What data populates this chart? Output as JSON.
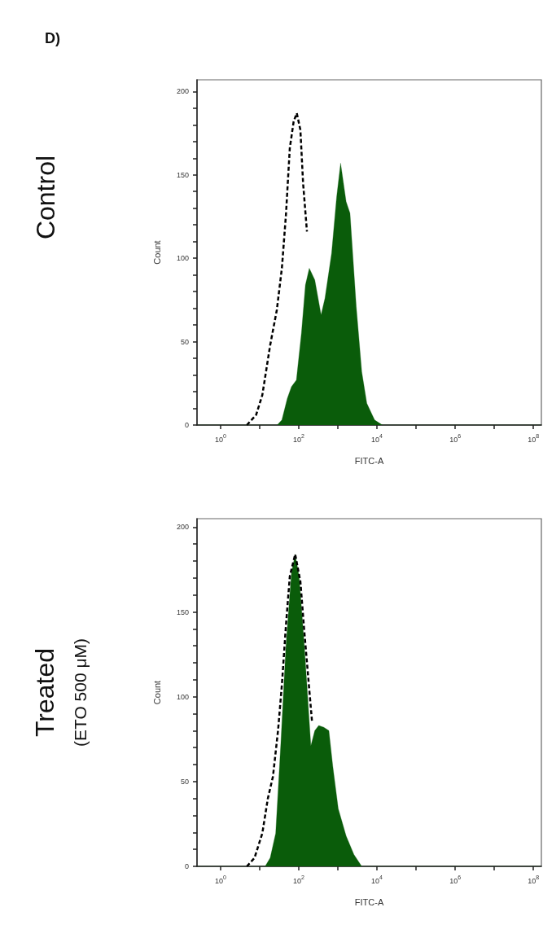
{
  "chart_data": [
    {
      "type": "area",
      "title": "Control",
      "annotations": [
        "D)"
      ],
      "xlabel": "FITC-A",
      "ylabel": "Count",
      "log": "x",
      "grid": false,
      "marker": "none",
      "xlim": [
        0.25,
        160000000
      ],
      "ylim": [
        0,
        207
      ],
      "xticks": [
        {
          "value": 1,
          "label": "10$^{0}$"
        },
        {
          "value": 10,
          "label": null
        },
        {
          "value": 100,
          "label": "10$^{2}$"
        },
        {
          "value": 1000,
          "label": null
        },
        {
          "value": 10000,
          "label": "10$^{4}$"
        },
        {
          "value": 100000,
          "label": null
        },
        {
          "value": 1000000,
          "label": "10$^{6}$"
        },
        {
          "value": 10000000,
          "label": null
        },
        {
          "value": 100000000,
          "label": "10$^{8}$"
        }
      ],
      "yticks": [
        0,
        {
          "value": 10,
          "label": null
        },
        {
          "value": 20,
          "label": null
        },
        {
          "value": 30,
          "label": null
        },
        {
          "value": 40,
          "label": null
        },
        50,
        {
          "value": 60,
          "label": null
        },
        {
          "value": 70,
          "label": null
        },
        {
          "value": 80,
          "label": null
        },
        {
          "value": 90,
          "label": null
        },
        100,
        {
          "value": 110,
          "label": null
        },
        {
          "value": 120,
          "label": null
        },
        {
          "value": 130,
          "label": null
        },
        {
          "value": 140,
          "label": null
        },
        150,
        {
          "value": 160,
          "label": null
        },
        {
          "value": 170,
          "label": null
        },
        {
          "value": 180,
          "label": null
        },
        {
          "value": 190,
          "label": null
        },
        200
      ],
      "series": [
        {
          "type": "line",
          "color": "#000000",
          "line_style": "dashed",
          "x": [
            4.7,
            8.1,
            11.7,
            18.6,
            27.5,
            37,
            47,
            59,
            74,
            89,
            110,
            129,
            162
          ],
          "values": [
            0,
            6,
            18,
            48,
            69,
            94,
            126,
            166,
            182,
            187,
            177,
            145,
            116
          ]
        },
        {
          "type": "area",
          "color": "#0a5c0a",
          "x": [
            0.25,
            28,
            37,
            51,
            65,
            87,
            117,
            148,
            186,
            257,
            372,
            468,
            692,
            933,
            1175,
            1622,
            2042,
            2951,
            4074,
            5495,
            8710,
            13800,
            160000000
          ],
          "values": [
            0,
            0,
            3,
            16,
            23,
            27,
            55,
            84,
            94,
            87,
            66,
            76,
            103,
            137,
            157,
            134,
            127,
            71,
            32,
            13,
            3,
            0,
            0
          ]
        }
      ]
    },
    {
      "type": "area",
      "title": "Treated",
      "subtitle": "(ETO 500 μM)",
      "xlabel": "FITC-A",
      "ylabel": "Count",
      "log": "x",
      "grid": false,
      "marker": "none",
      "xlim": [
        0.25,
        160000000
      ],
      "ylim": [
        0,
        205
      ],
      "xticks": [
        {
          "value": 1,
          "label": "10$^{0}$"
        },
        {
          "value": 10,
          "label": null
        },
        {
          "value": 100,
          "label": "10$^{2}$"
        },
        {
          "value": 1000,
          "label": null
        },
        {
          "value": 10000,
          "label": "10$^{4}$"
        },
        {
          "value": 100000,
          "label": null
        },
        {
          "value": 1000000,
          "label": "10$^{6}$"
        },
        {
          "value": 10000000,
          "label": null
        },
        {
          "value": 100000000,
          "label": "10$^{8}$"
        }
      ],
      "yticks": [
        0,
        {
          "value": 10,
          "label": null
        },
        {
          "value": 20,
          "label": null
        },
        {
          "value": 30,
          "label": null
        },
        {
          "value": 40,
          "label": null
        },
        50,
        {
          "value": 60,
          "label": null
        },
        {
          "value": 70,
          "label": null
        },
        {
          "value": 80,
          "label": null
        },
        {
          "value": 90,
          "label": null
        },
        100,
        {
          "value": 110,
          "label": null
        },
        {
          "value": 120,
          "label": null
        },
        {
          "value": 130,
          "label": null
        },
        {
          "value": 140,
          "label": null
        },
        150,
        {
          "value": 160,
          "label": null
        },
        {
          "value": 170,
          "label": null
        },
        {
          "value": 180,
          "label": null
        },
        {
          "value": 190,
          "label": null
        },
        200
      ],
      "series": [
        {
          "type": "area",
          "color": "#0a5c0a",
          "x": [
            0.25,
            13.8,
            18.6,
            25.7,
            34.7,
            47,
            65,
            81,
            102,
            138,
            204,
            257,
            324,
            437,
            589,
            741,
            1023,
            1622,
            2570,
            4074,
            160000000
          ],
          "values": [
            0,
            0,
            5,
            19.5,
            72,
            130,
            173,
            184,
            171,
            131,
            71,
            80,
            83,
            82,
            80,
            59,
            34,
            18,
            7,
            0,
            0
          ]
        },
        {
          "type": "line",
          "color": "#000000",
          "line_style": "dashed",
          "x": [
            4.7,
            7.4,
            11.7,
            16.2,
            21.9,
            29.5,
            37,
            47,
            59,
            81,
            110,
            138,
            186,
            219
          ],
          "values": [
            0,
            5,
            19.5,
            40,
            53,
            80,
            107,
            142,
            171,
            184,
            168,
            139,
            104,
            85
          ]
        }
      ]
    }
  ]
}
